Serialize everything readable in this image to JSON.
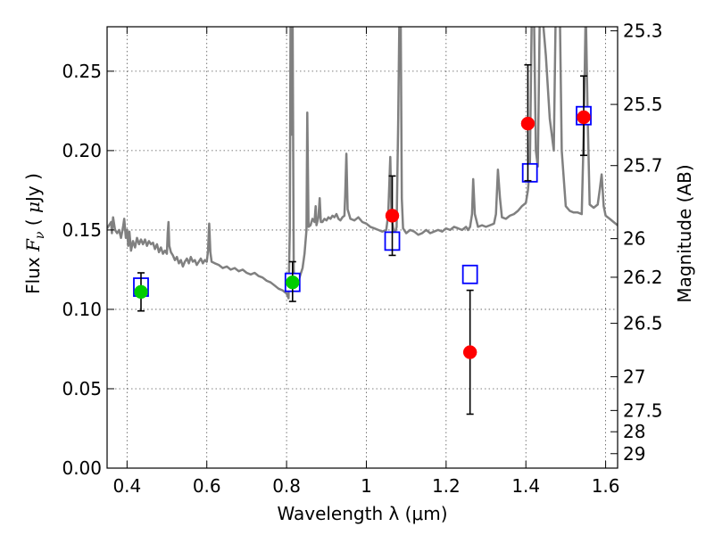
{
  "chart_data": {
    "type": "scatter",
    "title": "",
    "xlabel": "Wavelength  λ (μm)",
    "ylabel_parts": [
      "Flux  ",
      "F",
      "ν",
      "  ( ",
      "μ",
      "Jy )"
    ],
    "ylabel_right": "Magnitude (AB)",
    "xlim": [
      0.35,
      1.63
    ],
    "ylim": [
      0.0,
      0.278
    ],
    "grid": true,
    "x_ticks": [
      {
        "value": 0.4,
        "label": "0.4"
      },
      {
        "value": 0.6,
        "label": "0.6"
      },
      {
        "value": 0.8,
        "label": "0.8"
      },
      {
        "value": 1.0,
        "label": "1"
      },
      {
        "value": 1.2,
        "label": "1.2"
      },
      {
        "value": 1.4,
        "label": "1.4"
      },
      {
        "value": 1.6,
        "label": "1.6"
      }
    ],
    "y_ticks": [
      {
        "value": 0.0,
        "label": "0.00"
      },
      {
        "value": 0.05,
        "label": "0.05"
      },
      {
        "value": 0.1,
        "label": "0.10"
      },
      {
        "value": 0.15,
        "label": "0.15"
      },
      {
        "value": 0.2,
        "label": "0.20"
      },
      {
        "value": 0.25,
        "label": "0.25"
      }
    ],
    "right_ticks": [
      {
        "value": 25.3,
        "label": "25.3"
      },
      {
        "value": 25.5,
        "label": "25.5"
      },
      {
        "value": 25.7,
        "label": "25.7"
      },
      {
        "value": 26.0,
        "label": "26"
      },
      {
        "value": 26.2,
        "label": "26.2"
      },
      {
        "value": 26.5,
        "label": "26.5"
      },
      {
        "value": 27.0,
        "label": "27"
      },
      {
        "value": 27.5,
        "label": "27.5"
      },
      {
        "value": 28.0,
        "label": "28"
      },
      {
        "value": 29.0,
        "label": "29"
      }
    ],
    "colors": {
      "model": "#808080",
      "model_points": "#0000ff",
      "green_points": "#00cc00",
      "red_points": "#ff0000",
      "errorbar": "#000000",
      "grid": "#808080"
    },
    "series": [
      {
        "kind": "line",
        "points": [
          [
            0.35,
            0.151
          ],
          [
            0.36,
            0.155
          ],
          [
            0.362,
            0.148
          ],
          [
            0.365,
            0.158
          ],
          [
            0.37,
            0.15
          ],
          [
            0.375,
            0.148
          ],
          [
            0.38,
            0.15
          ],
          [
            0.385,
            0.145
          ],
          [
            0.39,
            0.152
          ],
          [
            0.393,
            0.157
          ],
          [
            0.397,
            0.145
          ],
          [
            0.4,
            0.15
          ],
          [
            0.403,
            0.14
          ],
          [
            0.406,
            0.149
          ],
          [
            0.41,
            0.137
          ],
          [
            0.415,
            0.143
          ],
          [
            0.42,
            0.139
          ],
          [
            0.425,
            0.145
          ],
          [
            0.43,
            0.141
          ],
          [
            0.435,
            0.144
          ],
          [
            0.44,
            0.141
          ],
          [
            0.445,
            0.144
          ],
          [
            0.45,
            0.14
          ],
          [
            0.455,
            0.143
          ],
          [
            0.46,
            0.141
          ],
          [
            0.465,
            0.142
          ],
          [
            0.47,
            0.138
          ],
          [
            0.475,
            0.141
          ],
          [
            0.48,
            0.136
          ],
          [
            0.485,
            0.139
          ],
          [
            0.49,
            0.135
          ],
          [
            0.495,
            0.137
          ],
          [
            0.5,
            0.135
          ],
          [
            0.502,
            0.148
          ],
          [
            0.504,
            0.155
          ],
          [
            0.506,
            0.14
          ],
          [
            0.51,
            0.136
          ],
          [
            0.515,
            0.134
          ],
          [
            0.52,
            0.131
          ],
          [
            0.525,
            0.133
          ],
          [
            0.53,
            0.129
          ],
          [
            0.535,
            0.131
          ],
          [
            0.54,
            0.127
          ],
          [
            0.545,
            0.13
          ],
          [
            0.55,
            0.132
          ],
          [
            0.555,
            0.129
          ],
          [
            0.56,
            0.133
          ],
          [
            0.565,
            0.13
          ],
          [
            0.57,
            0.131
          ],
          [
            0.575,
            0.128
          ],
          [
            0.58,
            0.13
          ],
          [
            0.585,
            0.132
          ],
          [
            0.59,
            0.129
          ],
          [
            0.595,
            0.131
          ],
          [
            0.6,
            0.13
          ],
          [
            0.603,
            0.137
          ],
          [
            0.606,
            0.154
          ],
          [
            0.609,
            0.136
          ],
          [
            0.612,
            0.13
          ],
          [
            0.62,
            0.129
          ],
          [
            0.63,
            0.128
          ],
          [
            0.64,
            0.126
          ],
          [
            0.65,
            0.127
          ],
          [
            0.66,
            0.125
          ],
          [
            0.67,
            0.126
          ],
          [
            0.68,
            0.124
          ],
          [
            0.69,
            0.125
          ],
          [
            0.7,
            0.123
          ],
          [
            0.71,
            0.122
          ],
          [
            0.72,
            0.123
          ],
          [
            0.73,
            0.121
          ],
          [
            0.74,
            0.12
          ],
          [
            0.75,
            0.118
          ],
          [
            0.76,
            0.117
          ],
          [
            0.77,
            0.115
          ],
          [
            0.78,
            0.113
          ],
          [
            0.79,
            0.112
          ],
          [
            0.8,
            0.11
          ],
          [
            0.805,
            0.107
          ],
          [
            0.808,
            0.15
          ],
          [
            0.81,
            0.29
          ],
          [
            0.812,
            0.21
          ],
          [
            0.815,
            0.29
          ],
          [
            0.818,
            0.125
          ],
          [
            0.82,
            0.116
          ],
          [
            0.825,
            0.115
          ],
          [
            0.83,
            0.118
          ],
          [
            0.835,
            0.122
          ],
          [
            0.84,
            0.126
          ],
          [
            0.845,
            0.135
          ],
          [
            0.85,
            0.15
          ],
          [
            0.852,
            0.224
          ],
          [
            0.855,
            0.152
          ],
          [
            0.86,
            0.153
          ],
          [
            0.865,
            0.157
          ],
          [
            0.87,
            0.155
          ],
          [
            0.873,
            0.165
          ],
          [
            0.875,
            0.153
          ],
          [
            0.88,
            0.158
          ],
          [
            0.883,
            0.17
          ],
          [
            0.886,
            0.155
          ],
          [
            0.89,
            0.155
          ],
          [
            0.895,
            0.157
          ],
          [
            0.9,
            0.156
          ],
          [
            0.905,
            0.158
          ],
          [
            0.91,
            0.157
          ],
          [
            0.915,
            0.159
          ],
          [
            0.92,
            0.158
          ],
          [
            0.925,
            0.16
          ],
          [
            0.93,
            0.157
          ],
          [
            0.935,
            0.156
          ],
          [
            0.94,
            0.158
          ],
          [
            0.945,
            0.159
          ],
          [
            0.947,
            0.172
          ],
          [
            0.95,
            0.198
          ],
          [
            0.953,
            0.163
          ],
          [
            0.96,
            0.157
          ],
          [
            0.97,
            0.156
          ],
          [
            0.98,
            0.158
          ],
          [
            0.99,
            0.155
          ],
          [
            1.0,
            0.154
          ],
          [
            1.01,
            0.152
          ],
          [
            1.02,
            0.151
          ],
          [
            1.03,
            0.15
          ],
          [
            1.04,
            0.149
          ],
          [
            1.05,
            0.15
          ],
          [
            1.055,
            0.16
          ],
          [
            1.06,
            0.196
          ],
          [
            1.063,
            0.16
          ],
          [
            1.068,
            0.15
          ],
          [
            1.072,
            0.148
          ],
          [
            1.076,
            0.152
          ],
          [
            1.08,
            0.22
          ],
          [
            1.083,
            0.29
          ],
          [
            1.086,
            0.29
          ],
          [
            1.089,
            0.17
          ],
          [
            1.092,
            0.151
          ],
          [
            1.1,
            0.148
          ],
          [
            1.11,
            0.15
          ],
          [
            1.12,
            0.149
          ],
          [
            1.13,
            0.147
          ],
          [
            1.14,
            0.148
          ],
          [
            1.15,
            0.15
          ],
          [
            1.16,
            0.148
          ],
          [
            1.17,
            0.149
          ],
          [
            1.18,
            0.15
          ],
          [
            1.19,
            0.149
          ],
          [
            1.2,
            0.151
          ],
          [
            1.21,
            0.15
          ],
          [
            1.22,
            0.152
          ],
          [
            1.23,
            0.151
          ],
          [
            1.24,
            0.15
          ],
          [
            1.25,
            0.152
          ],
          [
            1.255,
            0.15
          ],
          [
            1.26,
            0.152
          ],
          [
            1.265,
            0.16
          ],
          [
            1.268,
            0.182
          ],
          [
            1.272,
            0.16
          ],
          [
            1.28,
            0.152
          ],
          [
            1.29,
            0.153
          ],
          [
            1.3,
            0.152
          ],
          [
            1.31,
            0.153
          ],
          [
            1.32,
            0.154
          ],
          [
            1.325,
            0.16
          ],
          [
            1.33,
            0.188
          ],
          [
            1.335,
            0.17
          ],
          [
            1.34,
            0.158
          ],
          [
            1.35,
            0.157
          ],
          [
            1.36,
            0.159
          ],
          [
            1.37,
            0.16
          ],
          [
            1.38,
            0.162
          ],
          [
            1.39,
            0.165
          ],
          [
            1.4,
            0.167
          ],
          [
            1.405,
            0.175
          ],
          [
            1.41,
            0.19
          ],
          [
            1.415,
            0.29
          ],
          [
            1.42,
            0.29
          ],
          [
            1.425,
            0.2
          ],
          [
            1.43,
            0.19
          ],
          [
            1.435,
            0.29
          ],
          [
            1.44,
            0.29
          ],
          [
            1.45,
            0.26
          ],
          [
            1.46,
            0.22
          ],
          [
            1.47,
            0.2
          ],
          [
            1.475,
            0.29
          ],
          [
            1.485,
            0.29
          ],
          [
            1.49,
            0.2
          ],
          [
            1.5,
            0.165
          ],
          [
            1.51,
            0.162
          ],
          [
            1.52,
            0.161
          ],
          [
            1.53,
            0.161
          ],
          [
            1.54,
            0.16
          ],
          [
            1.545,
            0.21
          ],
          [
            1.55,
            0.29
          ],
          [
            1.555,
            0.22
          ],
          [
            1.56,
            0.166
          ],
          [
            1.57,
            0.164
          ],
          [
            1.58,
            0.166
          ],
          [
            1.585,
            0.175
          ],
          [
            1.59,
            0.185
          ],
          [
            1.595,
            0.165
          ],
          [
            1.6,
            0.159
          ],
          [
            1.61,
            0.157
          ],
          [
            1.62,
            0.155
          ],
          [
            1.63,
            0.153
          ]
        ]
      },
      {
        "kind": "square",
        "points": [
          [
            0.435,
            0.114
          ],
          [
            0.815,
            0.117
          ],
          [
            1.065,
            0.143
          ],
          [
            1.26,
            0.122
          ],
          [
            1.41,
            0.186
          ],
          [
            1.545,
            0.222
          ]
        ]
      },
      {
        "kind": "circle",
        "color": "green",
        "points": [
          [
            0.435,
            0.111,
            0.099,
            0.123
          ],
          [
            0.815,
            0.117,
            0.105,
            0.13
          ]
        ]
      },
      {
        "kind": "circle",
        "color": "red",
        "points": [
          [
            1.065,
            0.159,
            0.134,
            0.184
          ],
          [
            1.26,
            0.073,
            0.034,
            0.112
          ],
          [
            1.405,
            0.217,
            0.181,
            0.254
          ],
          [
            1.545,
            0.221,
            0.197,
            0.247
          ]
        ]
      }
    ]
  }
}
